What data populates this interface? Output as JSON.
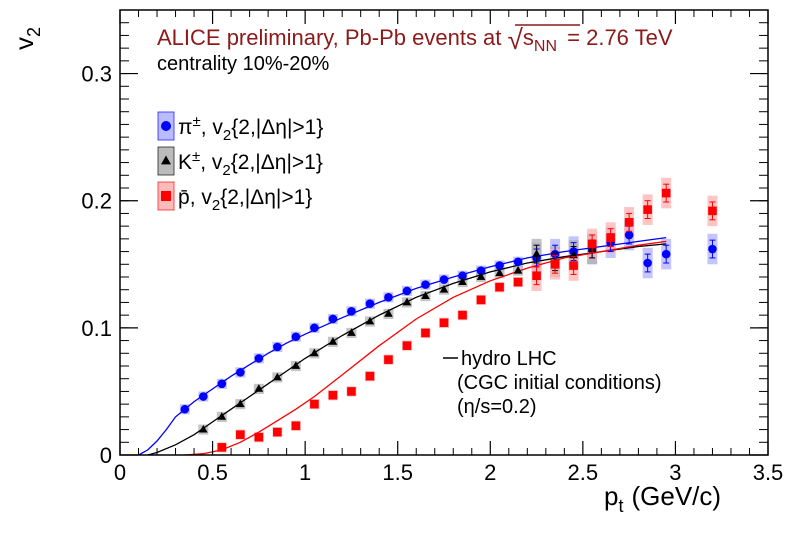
{
  "chart_data": {
    "type": "scatter",
    "title": "",
    "header": {
      "experiment": "ALICE preliminary, Pb-Pb events at",
      "sqrt_symbol": "√",
      "sqrt_var": "s",
      "sqrt_sub": "NN",
      "energy": "= 2.76 TeV",
      "centrality": "centrality 10%-20%",
      "color": "#8b1a1a"
    },
    "xlabel": {
      "main": "p",
      "sub": "t",
      "unit": "(GeV/c)"
    },
    "ylabel": {
      "main": "v",
      "sub": "2"
    },
    "xlim": [
      0,
      3.5
    ],
    "ylim": [
      0,
      0.35
    ],
    "xticks": [
      "0",
      "0.5",
      "1",
      "1.5",
      "2",
      "2.5",
      "3",
      "3.5"
    ],
    "yticks": [
      "0",
      "0.1",
      "0.2",
      "0.3"
    ],
    "legend_position": "top-left",
    "model_label": {
      "line1": "hydro LHC",
      "line2": "(CGC initial conditions)",
      "line3": "(η/s=0.2)"
    },
    "series": [
      {
        "name_particle": "π",
        "name_sup": "±",
        "name_rest": ", v",
        "name_sub": "2",
        "name_tail": "{2,|Δη|>1}",
        "marker": "circle",
        "color": "#0000ff",
        "fill": "#b0b0ff",
        "x": [
          0.35,
          0.45,
          0.55,
          0.65,
          0.75,
          0.85,
          0.95,
          1.05,
          1.15,
          1.25,
          1.35,
          1.45,
          1.55,
          1.65,
          1.75,
          1.85,
          1.95,
          2.05,
          2.15,
          2.25,
          2.35,
          2.45,
          2.55,
          2.65,
          2.75,
          2.85,
          2.95,
          3.2
        ],
        "y": [
          0.036,
          0.046,
          0.056,
          0.065,
          0.076,
          0.085,
          0.093,
          0.1,
          0.107,
          0.113,
          0.119,
          0.124,
          0.129,
          0.134,
          0.138,
          0.141,
          0.145,
          0.149,
          0.152,
          0.155,
          0.158,
          0.16,
          0.162,
          0.167,
          0.173,
          0.151,
          0.158,
          0.162
        ]
      },
      {
        "name_particle": "K",
        "name_sup": "±",
        "name_rest": ", v",
        "name_sub": "2",
        "name_tail": "{2,|Δη|>1}",
        "marker": "triangle",
        "color": "#000000",
        "fill": "#b0b0b0",
        "x": [
          0.45,
          0.55,
          0.65,
          0.75,
          0.85,
          0.95,
          1.05,
          1.15,
          1.25,
          1.35,
          1.45,
          1.55,
          1.65,
          1.75,
          1.85,
          1.95,
          2.05,
          2.15,
          2.25,
          2.35,
          2.45,
          2.55
        ],
        "y": [
          0.02,
          0.03,
          0.04,
          0.052,
          0.061,
          0.07,
          0.08,
          0.089,
          0.096,
          0.105,
          0.111,
          0.12,
          0.125,
          0.13,
          0.136,
          0.14,
          0.143,
          0.145,
          0.158,
          0.152,
          0.157,
          0.162
        ]
      },
      {
        "name_particle": "p̄",
        "name_sup": "",
        "name_rest": ", v",
        "name_sub": "2",
        "name_tail": "{2,|Δη|>1}",
        "marker": "square",
        "color": "#ff0000",
        "fill": "#ffb0b0",
        "x": [
          0.55,
          0.65,
          0.75,
          0.85,
          0.95,
          1.05,
          1.15,
          1.25,
          1.35,
          1.45,
          1.55,
          1.65,
          1.75,
          1.85,
          1.95,
          2.05,
          2.15,
          2.25,
          2.35,
          2.45,
          2.55,
          2.65,
          2.75,
          2.85,
          2.95,
          3.2
        ],
        "y": [
          0.006,
          0.016,
          0.014,
          0.018,
          0.023,
          0.04,
          0.047,
          0.05,
          0.062,
          0.075,
          0.086,
          0.096,
          0.104,
          0.11,
          0.122,
          0.132,
          0.136,
          0.141,
          0.15,
          0.149,
          0.166,
          0.171,
          0.183,
          0.193,
          0.206,
          0.192
        ]
      }
    ],
    "curves": [
      {
        "name": "hydro LHC pion",
        "color": "#0000ff",
        "x": [
          0.1,
          0.15,
          0.2,
          0.25,
          0.3,
          0.4,
          0.5,
          0.6,
          0.7,
          0.8,
          0.9,
          1.0,
          1.2,
          1.4,
          1.6,
          1.8,
          2.0,
          2.2,
          2.4,
          2.6,
          2.8,
          2.95
        ],
        "y": [
          0.0,
          0.004,
          0.011,
          0.02,
          0.03,
          0.042,
          0.052,
          0.062,
          0.071,
          0.08,
          0.088,
          0.095,
          0.108,
          0.12,
          0.131,
          0.14,
          0.148,
          0.155,
          0.16,
          0.164,
          0.168,
          0.171
        ]
      },
      {
        "name": "hydro LHC kaon",
        "color": "#000000",
        "x": [
          0.15,
          0.2,
          0.3,
          0.4,
          0.5,
          0.6,
          0.7,
          0.8,
          0.9,
          1.0,
          1.2,
          1.4,
          1.6,
          1.8,
          2.0,
          2.2,
          2.4,
          2.6,
          2.8,
          2.95
        ],
        "y": [
          0.0,
          0.002,
          0.008,
          0.016,
          0.026,
          0.036,
          0.046,
          0.056,
          0.066,
          0.076,
          0.094,
          0.11,
          0.124,
          0.135,
          0.144,
          0.151,
          0.156,
          0.16,
          0.164,
          0.166
        ]
      },
      {
        "name": "hydro LHC antiproton",
        "color": "#ff0000",
        "x": [
          0.35,
          0.45,
          0.55,
          0.65,
          0.75,
          0.85,
          0.95,
          1.05,
          1.2,
          1.4,
          1.6,
          1.8,
          2.0,
          2.2,
          2.4,
          2.6,
          2.8,
          2.95
        ],
        "y": [
          0.0,
          0.001,
          0.004,
          0.01,
          0.018,
          0.027,
          0.036,
          0.046,
          0.063,
          0.086,
          0.107,
          0.124,
          0.137,
          0.147,
          0.155,
          0.16,
          0.165,
          0.168
        ]
      }
    ]
  }
}
